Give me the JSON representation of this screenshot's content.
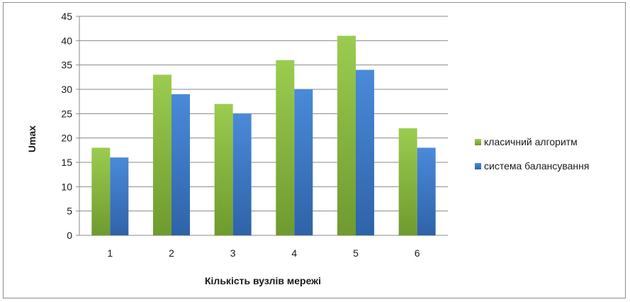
{
  "chart_data": {
    "type": "bar",
    "categories": [
      "1",
      "2",
      "3",
      "4",
      "5",
      "6"
    ],
    "series": [
      {
        "name": "класичний алгоритм",
        "values": [
          18,
          33,
          27,
          36,
          41,
          22
        ],
        "color": "#8cbf3f"
      },
      {
        "name": "система балансування",
        "values": [
          16,
          29,
          25,
          30,
          34,
          18
        ],
        "color": "#3f7fcf"
      }
    ],
    "title": "",
    "xlabel": "Кількість вузлів мережі",
    "ylabel": "Umax",
    "ylim": [
      0,
      45
    ],
    "yticks": [
      "0",
      "5",
      "10",
      "15",
      "20",
      "25",
      "30",
      "35",
      "40",
      "45"
    ],
    "grid": true,
    "legend_position": "right"
  }
}
